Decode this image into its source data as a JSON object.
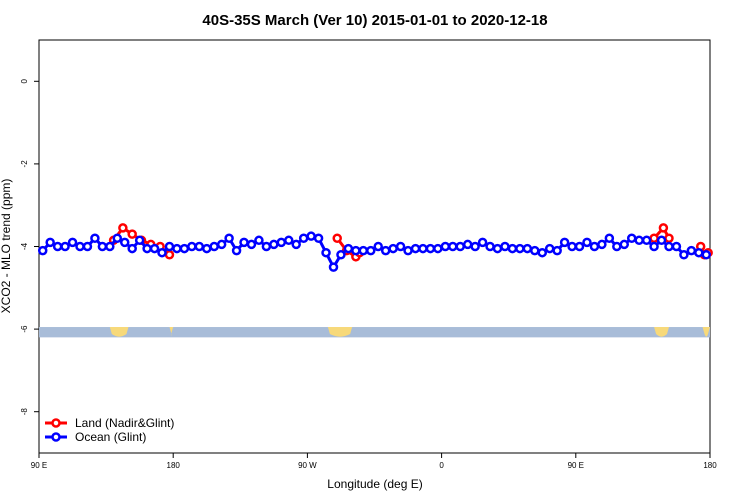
{
  "chart_data": {
    "type": "line",
    "title": "40S-35S March (Ver 10)   2015-01-01 to 2020-12-18",
    "xlabel": "Longitude (deg E)",
    "ylabel": "XCO2 - MLO trend (ppm)",
    "xlim": [
      0,
      360
    ],
    "ylim": [
      -9,
      1
    ],
    "x_ticks": [
      {
        "value": 0,
        "label": "90 E"
      },
      {
        "value": 72,
        "label": "180"
      },
      {
        "value": 144,
        "label": "90 W"
      },
      {
        "value": 216,
        "label": "0"
      },
      {
        "value": 288,
        "label": "90 E"
      },
      {
        "value": 360,
        "label": "180"
      }
    ],
    "y_ticks": [
      {
        "value": 0,
        "label": "0"
      },
      {
        "value": -2,
        "label": "-2"
      },
      {
        "value": -4,
        "label": "-4"
      },
      {
        "value": -6,
        "label": "-6"
      },
      {
        "value": -8,
        "label": "-8"
      }
    ],
    "legend": {
      "position": "bottom-left",
      "entries": [
        {
          "name": "Land (Nadir&Glint)",
          "color": "#ff0000"
        },
        {
          "name": "Ocean (Glint)",
          "color": "#0000ff"
        }
      ]
    },
    "series": [
      {
        "name": "Land (Nadir&Glint)",
        "color": "#ff0000",
        "segments": [
          {
            "x": [
              40,
              45,
              50,
              55,
              60,
              65,
              70
            ],
            "y": [
              -3.85,
              -3.55,
              -3.7,
              -3.85,
              -3.95,
              -4.0,
              -4.2
            ]
          },
          {
            "x": [
              160,
              165,
              170,
              172
            ],
            "y": [
              -3.8,
              -4.1,
              -4.25,
              -4.15
            ]
          },
          {
            "x": [
              330,
              335,
              338
            ],
            "y": [
              -3.8,
              -3.55,
              -3.8
            ]
          },
          {
            "x": [
              355,
              357,
              359
            ],
            "y": [
              -4.0,
              -4.2,
              -4.15
            ]
          }
        ]
      },
      {
        "name": "Ocean (Glint)",
        "color": "#0000ff",
        "x": [
          2,
          6,
          10,
          14,
          18,
          22,
          26,
          30,
          34,
          38,
          42,
          46,
          50,
          54,
          58,
          62,
          66,
          70,
          74,
          78,
          82,
          86,
          90,
          94,
          98,
          102,
          106,
          110,
          114,
          118,
          122,
          126,
          130,
          134,
          138,
          142,
          146,
          150,
          154,
          158,
          162,
          166,
          170,
          174,
          178,
          182,
          186,
          190,
          194,
          198,
          202,
          206,
          210,
          214,
          218,
          222,
          226,
          230,
          234,
          238,
          242,
          246,
          250,
          254,
          258,
          262,
          266,
          270,
          274,
          278,
          282,
          286,
          290,
          294,
          298,
          302,
          306,
          310,
          314,
          318,
          322,
          326,
          330,
          334,
          338,
          342,
          346,
          350,
          354,
          358
        ],
        "y": [
          -4.1,
          -3.9,
          -4.0,
          -4.0,
          -3.9,
          -4.0,
          -4.0,
          -3.8,
          -4.0,
          -4.0,
          -3.8,
          -3.9,
          -4.05,
          -3.85,
          -4.05,
          -4.05,
          -4.15,
          -4.0,
          -4.05,
          -4.05,
          -4.0,
          -4.0,
          -4.05,
          -4.0,
          -3.95,
          -3.8,
          -4.1,
          -3.9,
          -3.95,
          -3.85,
          -4.0,
          -3.95,
          -3.9,
          -3.85,
          -3.95,
          -3.8,
          -3.75,
          -3.8,
          -4.15,
          -4.5,
          -4.2,
          -4.05,
          -4.1,
          -4.1,
          -4.1,
          -4.0,
          -4.1,
          -4.05,
          -4.0,
          -4.1,
          -4.05,
          -4.05,
          -4.05,
          -4.05,
          -4.0,
          -4.0,
          -4.0,
          -3.95,
          -4.0,
          -3.9,
          -4.0,
          -4.05,
          -4.0,
          -4.05,
          -4.05,
          -4.05,
          -4.1,
          -4.15,
          -4.05,
          -4.1,
          -3.9,
          -4.0,
          -4.0,
          -3.9,
          -4.0,
          -3.95,
          -3.8,
          -4.0,
          -3.95,
          -3.8,
          -3.85,
          -3.85,
          -4.0,
          -3.85,
          -4.0,
          -4.0,
          -4.2,
          -4.1,
          -4.15,
          -4.2
        ]
      }
    ],
    "background_band": {
      "y_range": [
        -6.2,
        -5.95
      ],
      "color": "#a8bcd8",
      "land_color": "#f7d97a"
    }
  }
}
